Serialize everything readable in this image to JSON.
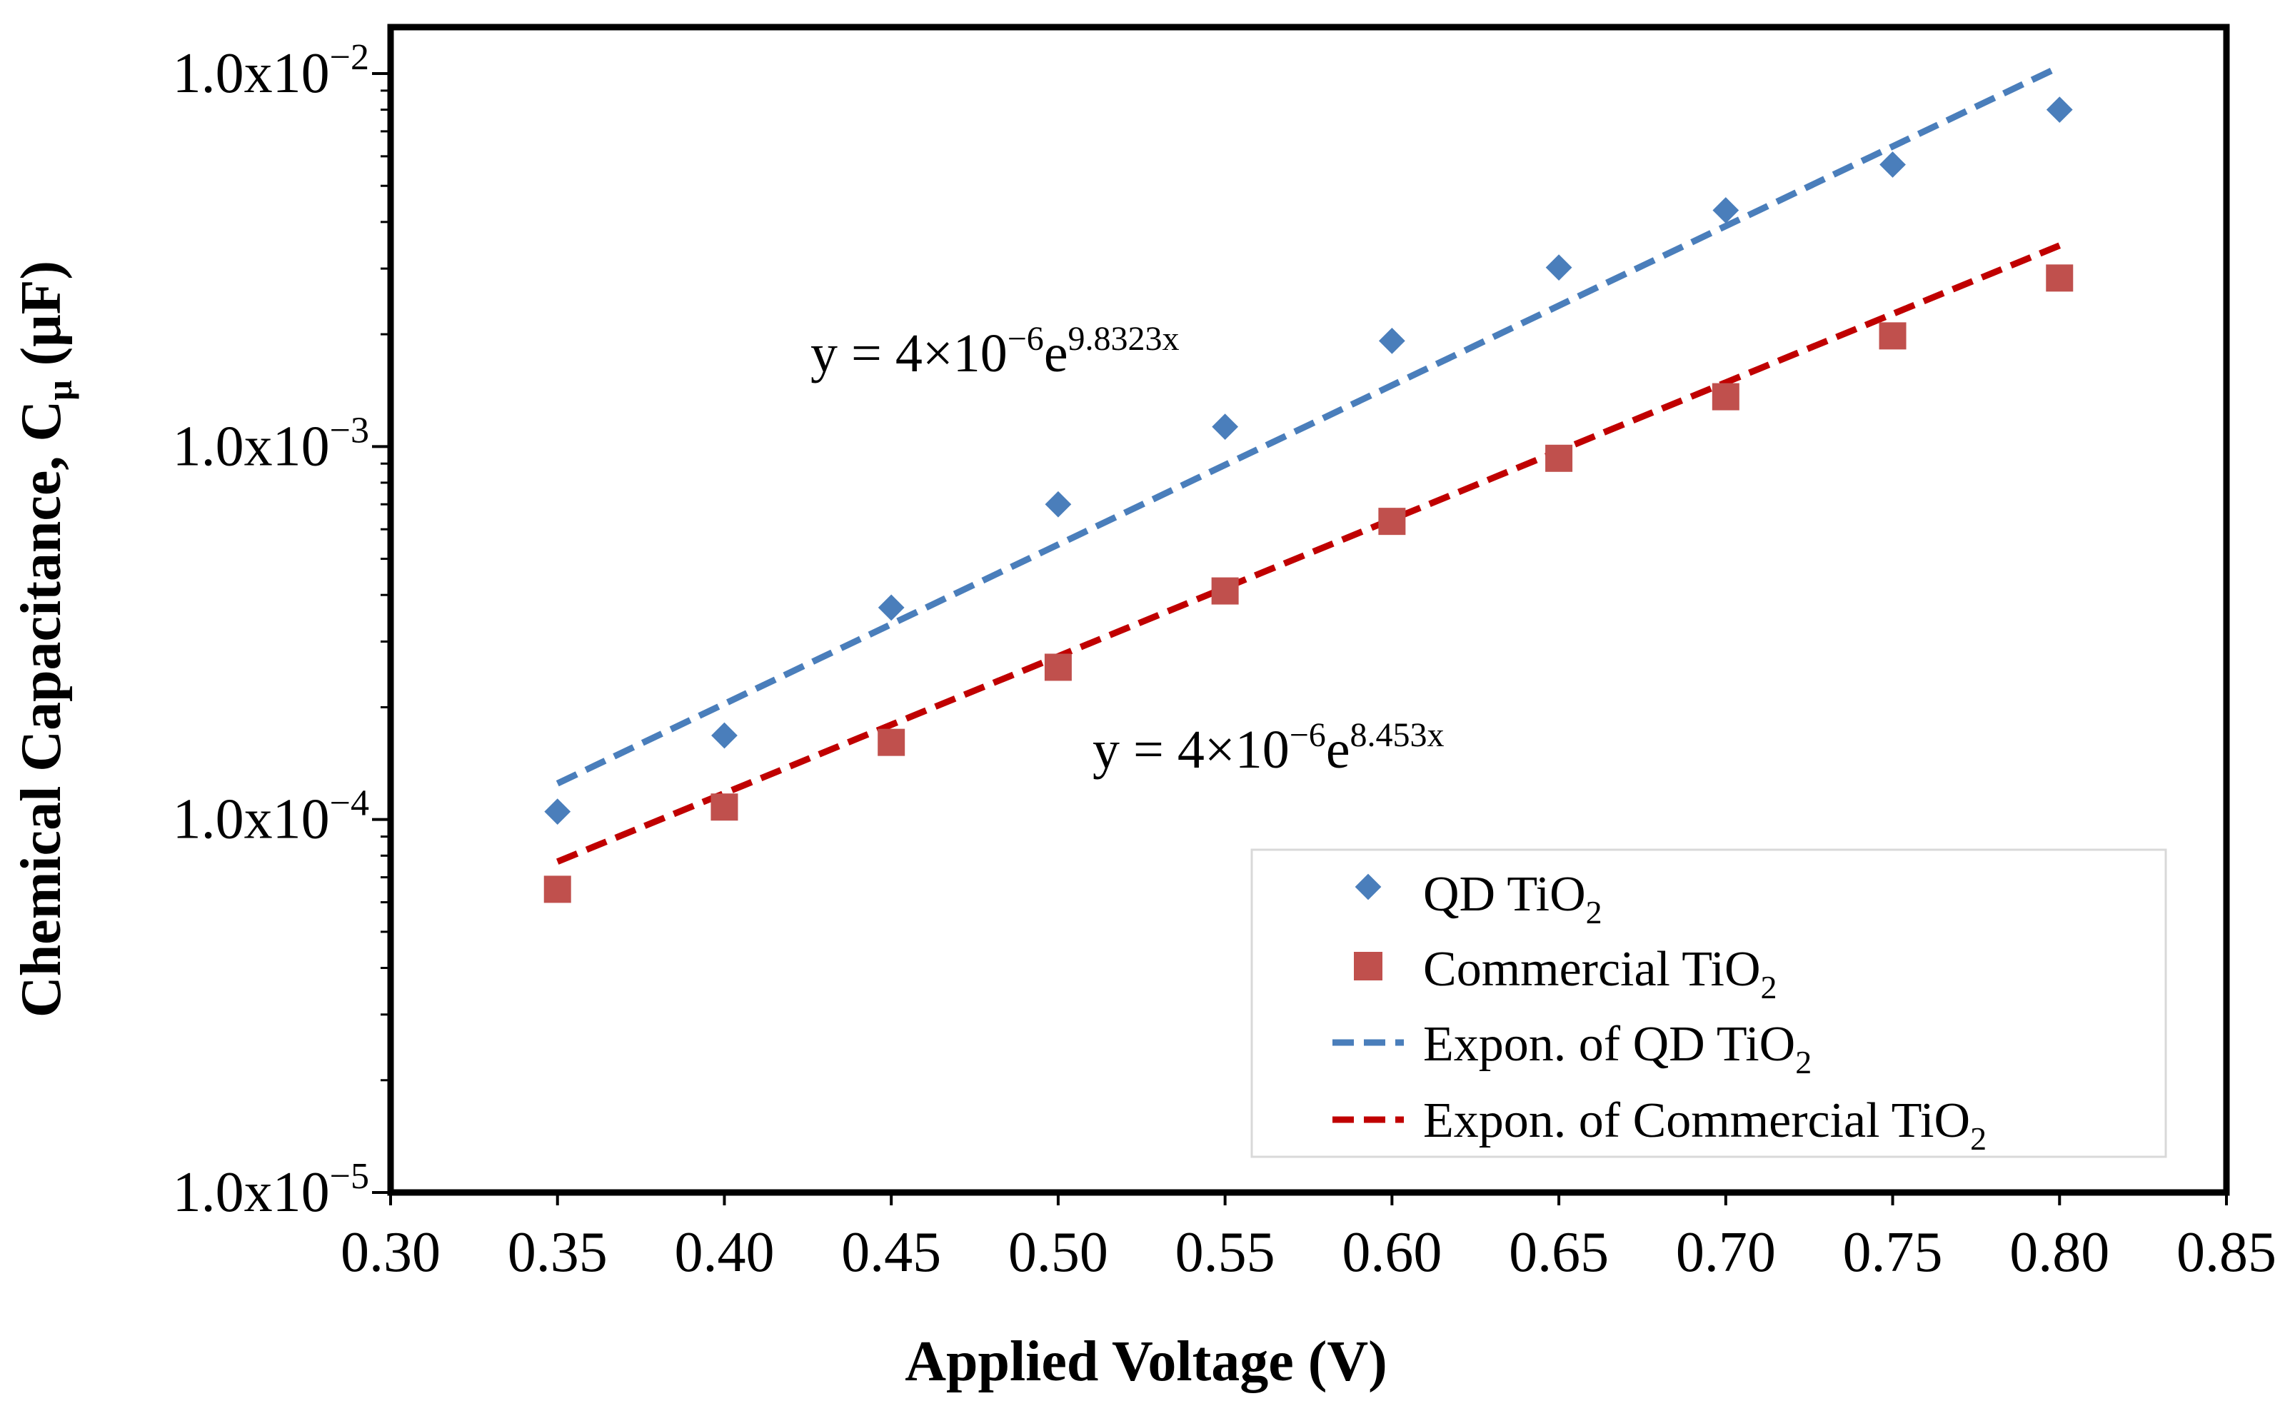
{
  "chart_data": {
    "type": "scatter",
    "title": "",
    "xlabel": "Applied Voltage (V)",
    "ylabel": {
      "main": "Chemical Capacitance, C",
      "sub": "μ",
      "unit": " (μF)"
    },
    "xlim": [
      0.3,
      0.85
    ],
    "x_ticks": [
      0.3,
      0.35,
      0.4,
      0.45,
      0.5,
      0.55,
      0.6,
      0.65,
      0.7,
      0.75,
      0.8,
      0.85
    ],
    "x_tick_labels": [
      "0.30",
      "0.35",
      "0.40",
      "0.45",
      "0.50",
      "0.55",
      "0.60",
      "0.65",
      "0.70",
      "0.75",
      "0.80",
      "0.85"
    ],
    "yscale": "log",
    "ylim": [
      1e-05,
      0.01
    ],
    "y_ticks": [
      {
        "value": 0.01,
        "base": "1.0x10",
        "exp": "−2"
      },
      {
        "value": 0.001,
        "base": "1.0x10",
        "exp": "−3"
      },
      {
        "value": 0.0001,
        "base": "1.0x10",
        "exp": "−4"
      },
      {
        "value": 1e-05,
        "base": "1.0x10",
        "exp": "−5"
      }
    ],
    "series": [
      {
        "name": "QD TiO",
        "name_sub": "2",
        "marker": "diamond",
        "color": "#4a7ebb",
        "x": [
          0.35,
          0.4,
          0.45,
          0.5,
          0.55,
          0.6,
          0.65,
          0.7,
          0.75,
          0.8
        ],
        "y": [
          0.000105,
          0.000168,
          0.00037,
          0.0007,
          0.00113,
          0.00192,
          0.00302,
          0.0043,
          0.0057,
          0.008
        ]
      },
      {
        "name": "Commercial TiO",
        "name_sub": "2",
        "marker": "square",
        "color": "#c0504d",
        "x": [
          0.35,
          0.4,
          0.45,
          0.5,
          0.55,
          0.6,
          0.65,
          0.7,
          0.75,
          0.8
        ],
        "y": [
          6.5e-05,
          0.000108,
          0.000161,
          0.000256,
          0.00041,
          0.00063,
          0.00093,
          0.00136,
          0.00198,
          0.00283
        ]
      }
    ],
    "trendlines": [
      {
        "name": "Expon. of QD TiO",
        "name_sub": "2",
        "color": "#4a7ebb",
        "a": 4e-06,
        "b": 9.8323,
        "x_range": [
          0.35,
          0.8
        ],
        "equation": {
          "base": "y = 4×10",
          "exp1": "−6",
          "e": "e",
          "exp2": "9.8323x"
        }
      },
      {
        "name": "Expon. of Commercial TiO",
        "name_sub": "2",
        "color": "#c00000",
        "a": 4e-06,
        "b": 8.453,
        "x_range": [
          0.35,
          0.8
        ],
        "equation": {
          "base": "y = 4×10",
          "exp1": "−6",
          "e": "e",
          "exp2": "8.453x"
        }
      }
    ],
    "legend_position": "bottom-right",
    "grid": false
  }
}
